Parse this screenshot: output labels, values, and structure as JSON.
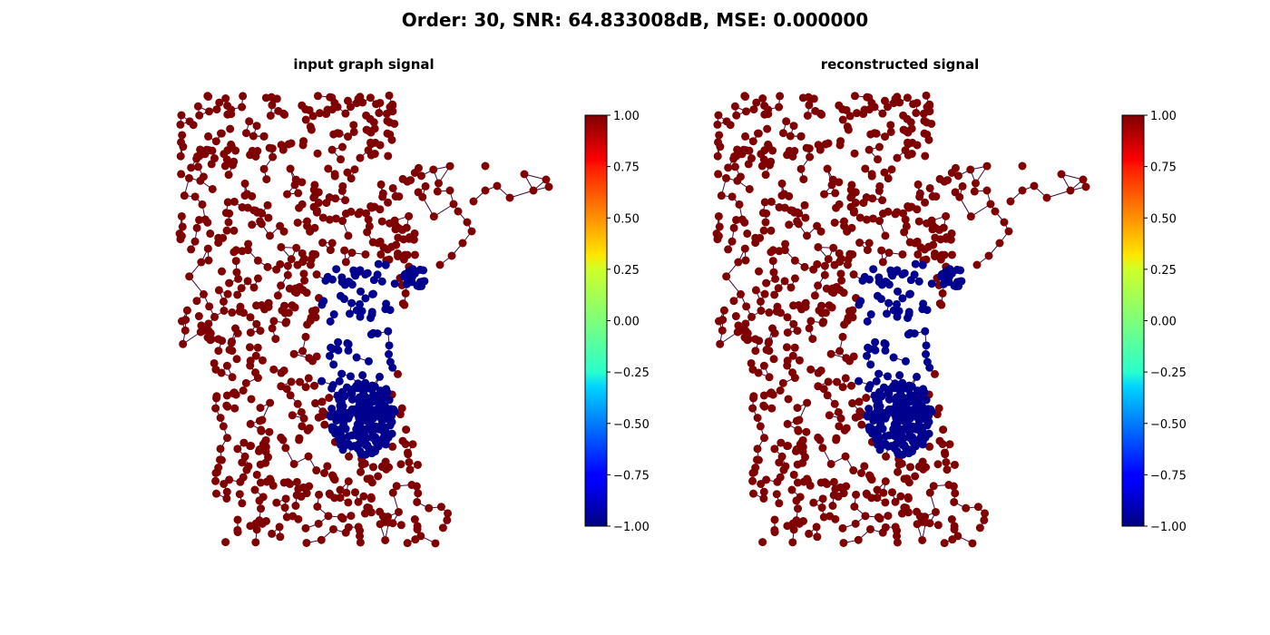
{
  "figure": {
    "suptitle": "Order: 30, SNR: 64.833008dB, MSE: 0.000000"
  },
  "panels": [
    {
      "title": "input graph signal"
    },
    {
      "title": "reconstructed signal"
    }
  ],
  "colorbar": {
    "colormap": "jet",
    "range": [
      -1.0,
      1.0
    ],
    "ticks": [
      "1.00",
      "0.75",
      "0.50",
      "0.25",
      "0.00",
      "−0.25",
      "−0.50",
      "−0.75",
      "−1.00"
    ]
  },
  "colors": {
    "node_positive": "#7f0000",
    "node_negative": "#00008f",
    "edge": "#3b0a45"
  },
  "chart_data": [
    {
      "type": "scatter",
      "title": "input graph signal",
      "description_values": "graph nodes colored by signal value; cluster values -1 (blue), remaining nodes +1 (dark red)",
      "color_range": [
        -1.0,
        1.0
      ],
      "node_values_present": [
        1.0,
        -1.0
      ]
    },
    {
      "type": "scatter",
      "title": "reconstructed signal",
      "color_range": [
        -1.0,
        1.0
      ],
      "node_values_present": [
        1.0,
        -1.0
      ]
    }
  ]
}
